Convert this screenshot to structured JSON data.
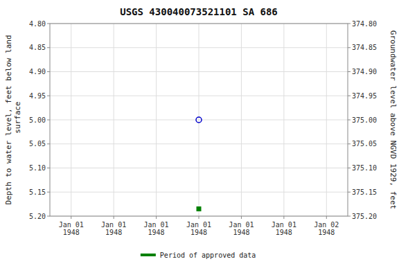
{
  "chart_data": {
    "type": "scatter",
    "title": "USGS 430040073521101 SA 686",
    "y_label": "Depth to water level, feet below land\n surface",
    "y2_label": "Groundwater level above NGVD 1929, feet",
    "categories": [
      "Jan 01\n1948",
      "Jan 01\n1948",
      "Jan 01\n1948",
      "Jan 01\n1948",
      "Jan 01\n1948",
      "Jan 01\n1948",
      "Jan 02\n1948"
    ],
    "series": [
      {
        "color": "#0000cc",
        "marker": "open-circle",
        "values": [
          null,
          null,
          null,
          5.0,
          null,
          null,
          null
        ]
      },
      {
        "name": "Period of approved data",
        "color": "#008000",
        "marker": "square",
        "values": [
          null,
          null,
          null,
          5.185,
          null,
          null,
          null
        ]
      }
    ],
    "ylim": [
      5.2,
      4.8
    ],
    "yticks": [
      {
        "value": 4.8,
        "label": "4.80"
      },
      4.85,
      {
        "value": 4.9,
        "label": "4.90"
      },
      4.95,
      {
        "value": 5.0,
        "label": "5.00"
      },
      5.05,
      {
        "value": 5.1,
        "label": "5.10"
      },
      5.15,
      {
        "value": 5.2,
        "label": "5.20"
      }
    ],
    "y2lim": [
      375.2,
      374.8
    ],
    "y2ticks": [
      {
        "value": 374.8,
        "label": "374.80"
      },
      374.85,
      {
        "value": 374.9,
        "label": "374.90"
      },
      374.95,
      {
        "value": 375.0,
        "label": "375.00"
      },
      375.05,
      {
        "value": 375.1,
        "label": "375.10"
      },
      375.15,
      {
        "value": 375.2,
        "label": "375.20"
      }
    ],
    "grid": true,
    "legend": "bottom"
  }
}
